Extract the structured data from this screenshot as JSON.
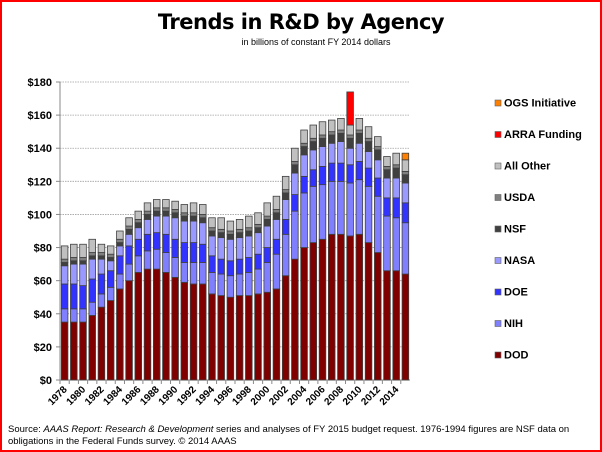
{
  "chart_data": {
    "type": "bar",
    "stacked": true,
    "title": "Trends in R&D by Agency",
    "subtitle": "in billions  of constant FY 2014 dollars",
    "xlabel": "",
    "ylabel": "",
    "ylim": [
      0,
      180
    ],
    "yticks": [
      0,
      20,
      40,
      60,
      80,
      100,
      120,
      140,
      160,
      180
    ],
    "ytick_labels": [
      "$0",
      "$20",
      "$40",
      "$60",
      "$80",
      "$100",
      "$120",
      "$140",
      "$160",
      "$180"
    ],
    "grid": true,
    "legend_position": "right",
    "categories": [
      1978,
      1979,
      1980,
      1981,
      1982,
      1983,
      1984,
      1985,
      1986,
      1987,
      1988,
      1989,
      1990,
      1991,
      1992,
      1993,
      1994,
      1995,
      1996,
      1997,
      1998,
      1999,
      2000,
      2001,
      2002,
      2003,
      2004,
      2005,
      2006,
      2007,
      2008,
      2009,
      2010,
      2011,
      2012,
      2013,
      2014,
      2015
    ],
    "xtick_labels": [
      "1978",
      "1980",
      "1982",
      "1984",
      "1986",
      "1988",
      "1990",
      "1992",
      "1994",
      "1996",
      "1998",
      "2000",
      "2002",
      "2004",
      "2006",
      "2008",
      "2010",
      "2012",
      "2014"
    ],
    "series": [
      {
        "name": "DOD",
        "color": "#800000",
        "values": [
          35,
          35,
          35,
          39,
          44,
          48,
          55,
          60,
          65,
          67,
          67,
          65,
          62,
          59,
          58,
          58,
          52,
          51,
          50,
          51,
          51,
          52,
          53,
          55,
          63,
          73,
          80,
          83,
          85,
          88,
          88,
          87,
          88,
          83,
          77,
          66,
          66,
          64
        ]
      },
      {
        "name": "NIH",
        "color": "#8080ff",
        "values": [
          8,
          8,
          8,
          8,
          8,
          8,
          9,
          10,
          10,
          11,
          12,
          12,
          12,
          12,
          13,
          13,
          13,
          13,
          13,
          13,
          14,
          15,
          18,
          21,
          25,
          29,
          33,
          34,
          33,
          32,
          32,
          32,
          33,
          34,
          34,
          33,
          32,
          31
        ]
      },
      {
        "name": "DOE",
        "color": "#3333ff",
        "values": [
          15,
          15,
          14,
          14,
          12,
          10,
          11,
          11,
          10,
          10,
          10,
          11,
          11,
          12,
          12,
          11,
          10,
          9,
          9,
          9,
          9,
          9,
          9,
          9,
          9,
          10,
          10,
          10,
          11,
          11,
          11,
          11,
          11,
          11,
          11,
          11,
          12,
          12
        ]
      },
      {
        "name": "NASA",
        "color": "#9999ff",
        "values": [
          11,
          12,
          13,
          12,
          9,
          6,
          6,
          7,
          7,
          9,
          10,
          11,
          13,
          13,
          13,
          13,
          12,
          13,
          13,
          13,
          13,
          13,
          13,
          12,
          12,
          13,
          13,
          12,
          12,
          12,
          13,
          10,
          11,
          10,
          11,
          12,
          12,
          12
        ]
      },
      {
        "name": "NSF",
        "color": "#404040",
        "values": [
          2,
          2,
          2,
          2,
          2,
          2,
          2,
          3,
          3,
          3,
          3,
          3,
          3,
          3,
          3,
          3,
          3,
          3,
          3,
          3,
          3,
          3,
          4,
          4,
          4,
          5,
          5,
          5,
          5,
          5,
          5,
          6,
          6,
          6,
          6,
          5,
          6,
          5
        ]
      },
      {
        "name": "USDA",
        "color": "#808080",
        "values": [
          2,
          2,
          2,
          2,
          2,
          2,
          2,
          2,
          2,
          2,
          2,
          2,
          2,
          2,
          2,
          2,
          2,
          2,
          2,
          2,
          2,
          2,
          2,
          2,
          2,
          2,
          2,
          2,
          2,
          2,
          2,
          2,
          2,
          2,
          2,
          2,
          2,
          2
        ]
      },
      {
        "name": "All Other",
        "color": "#c0c0c0",
        "values": [
          8,
          8,
          8,
          8,
          5,
          5,
          5,
          5,
          5,
          5,
          5,
          5,
          5,
          5,
          6,
          6,
          6,
          7,
          6,
          6,
          7,
          7,
          8,
          8,
          8,
          8,
          8,
          8,
          8,
          7,
          7,
          6,
          7,
          7,
          6,
          6,
          7,
          7
        ]
      },
      {
        "name": "ARRA Funding",
        "color": "#ff0000",
        "values": [
          0,
          0,
          0,
          0,
          0,
          0,
          0,
          0,
          0,
          0,
          0,
          0,
          0,
          0,
          0,
          0,
          0,
          0,
          0,
          0,
          0,
          0,
          0,
          0,
          0,
          0,
          0,
          0,
          0,
          0,
          0,
          20,
          0,
          0,
          0,
          0,
          0,
          0
        ]
      },
      {
        "name": "OGS Initiative",
        "color": "#ff8000",
        "values": [
          0,
          0,
          0,
          0,
          0,
          0,
          0,
          0,
          0,
          0,
          0,
          0,
          0,
          0,
          0,
          0,
          0,
          0,
          0,
          0,
          0,
          0,
          0,
          0,
          0,
          0,
          0,
          0,
          0,
          0,
          0,
          0,
          0,
          0,
          0,
          0,
          0,
          4
        ]
      }
    ],
    "legend_order": [
      "OGS Initiative",
      "ARRA Funding",
      "All Other",
      "USDA",
      "NSF",
      "NASA",
      "DOE",
      "NIH",
      "DOD"
    ]
  },
  "source": {
    "prefix": "Source: ",
    "italic": "AAAS Report: Research & Development",
    "rest": " series and analyses of FY 2015 budget request. 1976-1994 figures are NSF data on obligations in the Federal Funds survey. © 2014 AAAS"
  },
  "colors": {
    "frame_border": "#ff0000",
    "gridline": "#a0a0a0",
    "bar_outline": "#404040"
  }
}
